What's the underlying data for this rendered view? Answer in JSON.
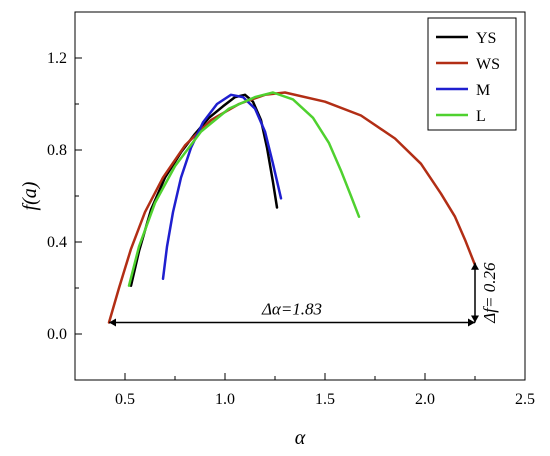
{
  "chart_data": {
    "type": "line",
    "xlabel": "α",
    "ylabel": "f(a)",
    "xlim": [
      0.25,
      2.5
    ],
    "ylim": [
      -0.2,
      1.4
    ],
    "xticks": [
      "0.5",
      "1.0",
      "1.5",
      "2.0",
      "2.5"
    ],
    "xtick_values": [
      0.5,
      1.0,
      1.5,
      2.0,
      2.5
    ],
    "yticks": [
      "0.0",
      "0.4",
      "0.8",
      "1.2"
    ],
    "ytick_values": [
      0.0,
      0.4,
      0.8,
      1.2
    ],
    "grid": false,
    "legend_position": "top-right",
    "series": [
      {
        "name": "YS",
        "color": "#000000",
        "points": [
          [
            0.53,
            0.21
          ],
          [
            0.57,
            0.36
          ],
          [
            0.63,
            0.54
          ],
          [
            0.7,
            0.68
          ],
          [
            0.78,
            0.79
          ],
          [
            0.85,
            0.87
          ],
          [
            0.92,
            0.94
          ],
          [
            0.99,
            0.99
          ],
          [
            1.05,
            1.03
          ],
          [
            1.1,
            1.04
          ],
          [
            1.14,
            1.01
          ],
          [
            1.18,
            0.93
          ],
          [
            1.21,
            0.81
          ],
          [
            1.24,
            0.66
          ],
          [
            1.26,
            0.55
          ]
        ]
      },
      {
        "name": "WS",
        "color": "#b22e15",
        "points": [
          [
            0.42,
            0.05
          ],
          [
            0.47,
            0.2
          ],
          [
            0.53,
            0.37
          ],
          [
            0.6,
            0.53
          ],
          [
            0.69,
            0.68
          ],
          [
            0.8,
            0.82
          ],
          [
            0.93,
            0.93
          ],
          [
            1.07,
            1.0
          ],
          [
            1.2,
            1.04
          ],
          [
            1.3,
            1.05
          ],
          [
            1.5,
            1.01
          ],
          [
            1.68,
            0.95
          ],
          [
            1.85,
            0.85
          ],
          [
            1.98,
            0.74
          ],
          [
            2.08,
            0.61
          ],
          [
            2.15,
            0.51
          ],
          [
            2.2,
            0.41
          ],
          [
            2.25,
            0.3
          ]
        ]
      },
      {
        "name": "M",
        "color": "#1f1fcf",
        "points": [
          [
            0.69,
            0.24
          ],
          [
            0.71,
            0.38
          ],
          [
            0.74,
            0.53
          ],
          [
            0.78,
            0.68
          ],
          [
            0.83,
            0.81
          ],
          [
            0.89,
            0.92
          ],
          [
            0.96,
            1.0
          ],
          [
            1.03,
            1.04
          ],
          [
            1.09,
            1.03
          ],
          [
            1.15,
            0.98
          ],
          [
            1.2,
            0.88
          ],
          [
            1.24,
            0.74
          ],
          [
            1.28,
            0.59
          ]
        ]
      },
      {
        "name": "L",
        "color": "#4fd12f",
        "points": [
          [
            0.52,
            0.21
          ],
          [
            0.57,
            0.38
          ],
          [
            0.65,
            0.57
          ],
          [
            0.75,
            0.73
          ],
          [
            0.88,
            0.88
          ],
          [
            1.02,
            0.98
          ],
          [
            1.15,
            1.03
          ],
          [
            1.24,
            1.05
          ],
          [
            1.34,
            1.02
          ],
          [
            1.44,
            0.94
          ],
          [
            1.52,
            0.83
          ],
          [
            1.58,
            0.71
          ],
          [
            1.63,
            0.6
          ],
          [
            1.67,
            0.51
          ]
        ]
      }
    ],
    "annotations": [
      {
        "text": "Δα=1.83",
        "arrow": "horizontal",
        "x_from": 0.42,
        "x_to": 2.25,
        "y": 0.05
      },
      {
        "text": "Δf= 0.26",
        "arrow": "vertical",
        "x": 2.25,
        "y_from": 0.05,
        "y_to": 0.31
      }
    ]
  }
}
